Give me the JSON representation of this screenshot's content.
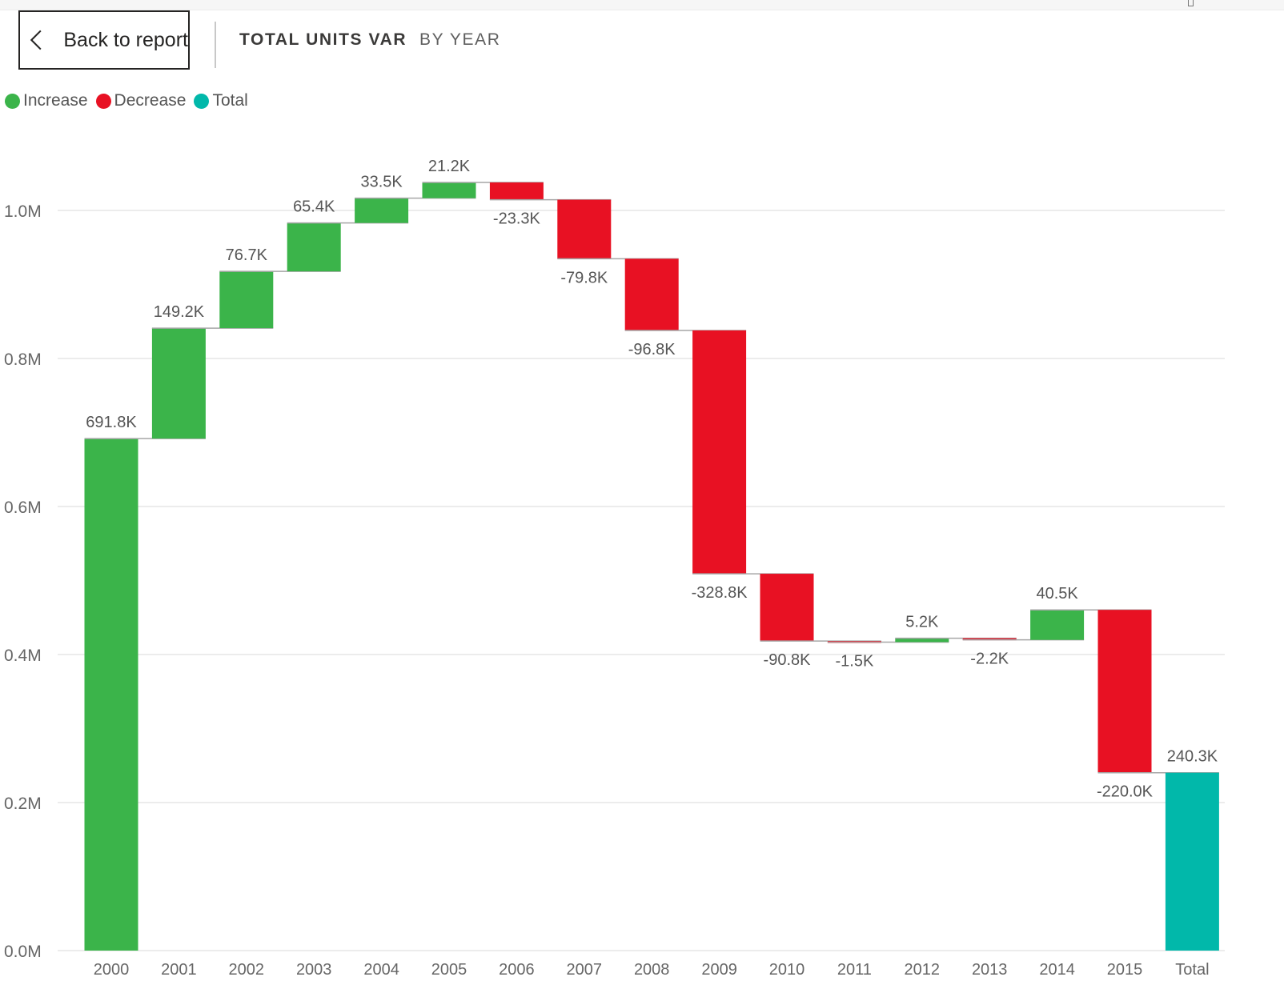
{
  "header": {
    "back_label": "Back to report",
    "title": "TOTAL UNITS VAR",
    "subtitle": "BY YEAR"
  },
  "legend": [
    {
      "label": "Increase",
      "color": "#3bb44a"
    },
    {
      "label": "Decrease",
      "color": "#e81123"
    },
    {
      "label": "Total",
      "color": "#01b8aa"
    }
  ],
  "chart_data": {
    "type": "waterfall",
    "categories": [
      "2000",
      "2001",
      "2002",
      "2003",
      "2004",
      "2005",
      "2006",
      "2007",
      "2008",
      "2009",
      "2010",
      "2011",
      "2012",
      "2013",
      "2014",
      "2015",
      "Total"
    ],
    "values": [
      691800,
      149200,
      76700,
      65400,
      33500,
      21200,
      -23300,
      -79800,
      -96800,
      -328800,
      -90800,
      -1500,
      5200,
      -2200,
      40500,
      -220000,
      240300
    ],
    "data_labels": [
      "691.8K",
      "149.2K",
      "76.7K",
      "65.4K",
      "33.5K",
      "21.2K",
      "-23.3K",
      "-79.8K",
      "-96.8K",
      "-328.8K",
      "-90.8K",
      "-1.5K",
      "5.2K",
      "-2.2K",
      "40.5K",
      "-220.0K",
      "240.3K"
    ],
    "total_index": 16,
    "ylim": [
      0,
      1000000
    ],
    "yticks": [
      0,
      200000,
      400000,
      600000,
      800000,
      1000000
    ],
    "ytick_labels": [
      "0.0M",
      "0.2M",
      "0.4M",
      "0.6M",
      "0.8M",
      "1.0M"
    ],
    "colors": {
      "increase": "#3bb44a",
      "decrease": "#e81123",
      "total": "#01b8aa"
    },
    "grid": true,
    "legend_position": "top-left"
  }
}
